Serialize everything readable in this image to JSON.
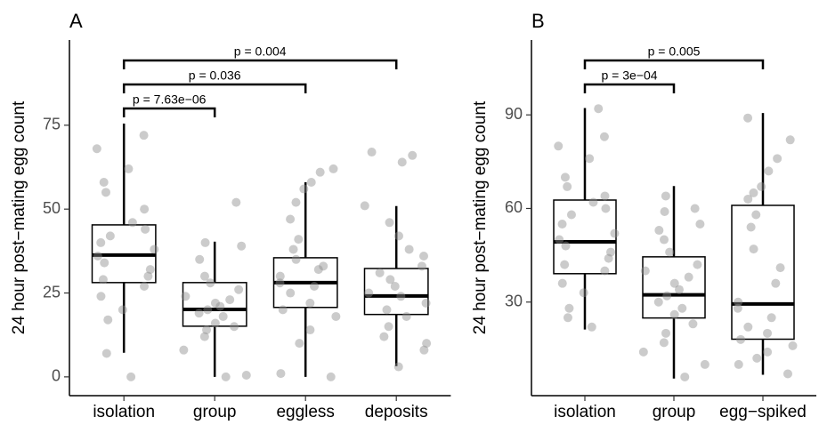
{
  "chart_data": [
    {
      "type": "box",
      "title": "A",
      "y_label": "24 hour post−mating egg count",
      "categories": [
        "isolation",
        "group",
        "eggless",
        "deposits"
      ],
      "ylim": [
        -5.6,
        100.4
      ],
      "yticks": [
        0,
        25,
        50,
        75
      ],
      "color": "#000000",
      "point_color": "#8c8c8c",
      "boxes": [
        {
          "low": 7.2,
          "q1": 28.1,
          "median": 36.3,
          "q3": 45.3,
          "high": 75.5
        },
        {
          "low": 0,
          "q1": 15.1,
          "median": 20.1,
          "q3": 28.1,
          "high": 40.3
        },
        {
          "low": 0,
          "q1": 20.7,
          "median": 28.1,
          "q3": 35.5,
          "high": 58
        },
        {
          "low": 3.2,
          "q1": 18.6,
          "median": 24.1,
          "q3": 32.3,
          "high": 50.9
        }
      ],
      "points": [
        [
          0,
          7,
          17,
          20,
          24,
          27,
          29,
          30,
          32,
          34,
          36,
          38,
          40,
          42,
          44,
          46,
          50,
          55,
          58,
          62,
          68,
          72
        ],
        [
          0,
          0.5,
          8,
          12,
          14,
          15,
          16,
          18,
          19,
          20,
          21,
          22,
          23,
          24,
          26,
          28,
          30,
          35,
          39,
          40,
          52
        ],
        [
          0,
          1,
          10,
          14,
          18,
          20,
          22,
          25,
          27,
          28,
          30,
          32,
          33,
          35,
          38,
          41,
          47,
          52,
          56,
          58,
          61,
          62
        ],
        [
          3,
          8,
          10,
          12,
          15,
          18,
          20,
          22,
          24,
          25,
          27,
          29,
          31,
          33,
          36,
          38,
          42,
          46,
          51,
          64,
          66,
          67
        ]
      ],
      "comparisons": [
        {
          "from": "isolation",
          "to": "group",
          "label": "p = 7.63e−06"
        },
        {
          "from": "isolation",
          "to": "eggless",
          "label": "p = 0.036"
        },
        {
          "from": "isolation",
          "to": "deposits",
          "label": "p = 0.004"
        }
      ]
    },
    {
      "type": "box",
      "title": "B",
      "y_label": "24 hour post−mating egg count",
      "categories": [
        "isolation",
        "group",
        "egg−spiked"
      ],
      "ylim": [
        0,
        114
      ],
      "yticks": [
        30,
        60,
        90
      ],
      "color": "#000000",
      "point_color": "#8c8c8c",
      "boxes": [
        {
          "low": 21.2,
          "q1": 39.1,
          "median": 49.3,
          "q3": 62.7,
          "high": 92.2
        },
        {
          "low": 5.5,
          "q1": 24.9,
          "median": 32.3,
          "q3": 44.5,
          "high": 67.2
        },
        {
          "low": 6.7,
          "q1": 18.1,
          "median": 29.4,
          "q3": 61,
          "high": 90.6
        }
      ],
      "points": [
        [
          22,
          25,
          28,
          33,
          36,
          40,
          42,
          44,
          46,
          48,
          50,
          52,
          55,
          58,
          60,
          62,
          64,
          67,
          70,
          76,
          80,
          83,
          92
        ],
        [
          6,
          10,
          14,
          17,
          20,
          23,
          26,
          28,
          30,
          32,
          34,
          36,
          38,
          40,
          42,
          46,
          50,
          53,
          55,
          59,
          60,
          64
        ],
        [
          7,
          10,
          12,
          14,
          16,
          18,
          20,
          22,
          25,
          28,
          30,
          36,
          41,
          47,
          54,
          58,
          63,
          65,
          67,
          72,
          76,
          82,
          89
        ]
      ],
      "comparisons": [
        {
          "from": "isolation",
          "to": "group",
          "label": "p = 3e−04"
        },
        {
          "from": "isolation",
          "to": "egg−spiked",
          "label": "p = 0.005"
        }
      ]
    }
  ]
}
